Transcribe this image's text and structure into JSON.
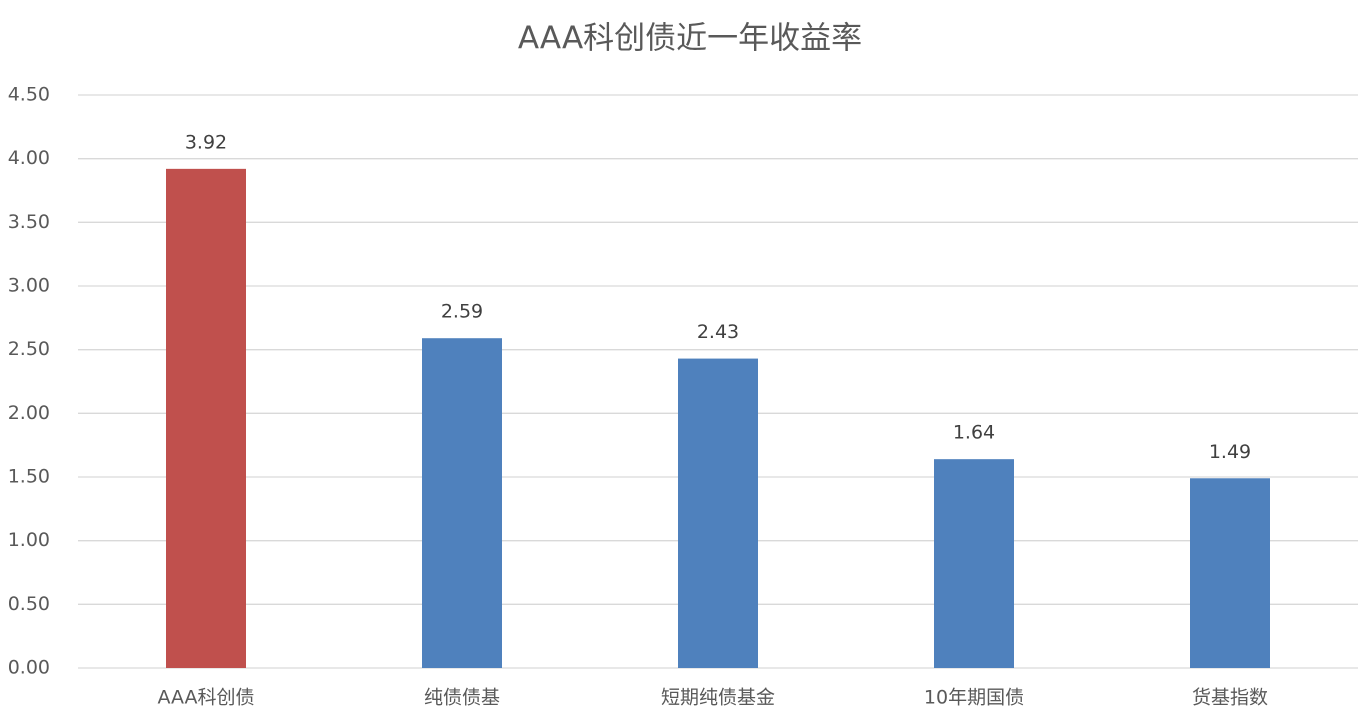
{
  "chart_data": {
    "type": "bar",
    "title": "AAA科创债近一年收益率",
    "categories": [
      "AAA科创债",
      "纯债债基",
      "短期纯债基金",
      "10年期国债",
      "货基指数"
    ],
    "values": [
      3.92,
      2.59,
      2.43,
      1.64,
      1.49
    ],
    "colors": [
      "#c0504d",
      "#4f81bd",
      "#4f81bd",
      "#4f81bd",
      "#4f81bd"
    ],
    "ylim": [
      0,
      4.5
    ],
    "yticks": [
      {
        "value": 0,
        "label": "0.00"
      },
      {
        "value": 0.5,
        "label": "0.50"
      },
      {
        "value": 1,
        "label": "1.00"
      },
      {
        "value": 1.5,
        "label": "1.50"
      },
      {
        "value": 2,
        "label": "2.00"
      },
      {
        "value": 2.5,
        "label": "2.50"
      },
      {
        "value": 3,
        "label": "3.00"
      },
      {
        "value": 3.5,
        "label": "3.50"
      },
      {
        "value": 4,
        "label": "4.00"
      },
      {
        "value": 4.5,
        "label": "4.50"
      }
    ],
    "grid": true
  }
}
